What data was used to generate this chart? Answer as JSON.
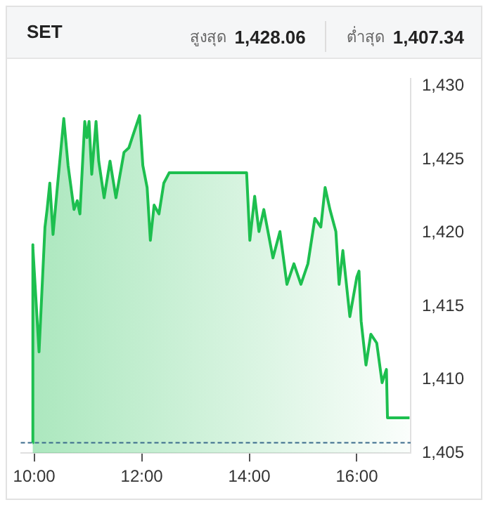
{
  "chart_data": {
    "type": "area",
    "title": "SET",
    "annotations": [
      "สูงสุด",
      "1,428.06",
      "ต่ำสุด",
      "1,407.34"
    ],
    "x": [
      9.97,
      9.97,
      9.98,
      10.09,
      10.2,
      10.24,
      10.29,
      10.35,
      10.43,
      10.55,
      10.63,
      10.74,
      10.8,
      10.85,
      10.94,
      10.98,
      11.02,
      11.07,
      11.15,
      11.2,
      11.3,
      11.41,
      11.52,
      11.67,
      11.76,
      11.84,
      11.96,
      12.02,
      12.1,
      12.16,
      12.23,
      12.32,
      12.41,
      12.51,
      13.95,
      14.01,
      14.1,
      14.18,
      14.27,
      14.44,
      14.57,
      14.7,
      14.83,
      14.96,
      15.09,
      15.22,
      15.33,
      15.41,
      15.5,
      15.61,
      15.67,
      15.74,
      15.87,
      16.0,
      16.04,
      16.08,
      16.17,
      16.26,
      16.37,
      16.47,
      16.55,
      16.57,
      16.98
    ],
    "series": [
      {
        "color": "#1dbf4f",
        "values": [
          1405.7,
          1419.2,
          1419.0,
          1411.9,
          1420.4,
          1421.6,
          1423.4,
          1419.9,
          1423.1,
          1427.8,
          1424.6,
          1421.6,
          1422.2,
          1421.3,
          1427.6,
          1426.5,
          1427.6,
          1424.0,
          1427.6,
          1424.9,
          1422.4,
          1424.9,
          1422.4,
          1425.5,
          1425.8,
          1426.7,
          1428.0,
          1424.6,
          1423.1,
          1419.5,
          1421.9,
          1421.3,
          1423.4,
          1424.1,
          1424.1,
          1419.5,
          1422.5,
          1420.1,
          1421.6,
          1418.3,
          1420.1,
          1416.5,
          1417.9,
          1416.5,
          1417.9,
          1421.0,
          1420.4,
          1423.1,
          1421.6,
          1420.1,
          1416.5,
          1418.8,
          1414.3,
          1417.0,
          1417.4,
          1414.0,
          1411.0,
          1413.1,
          1412.5,
          1409.8,
          1410.7,
          1407.4,
          1407.4
        ]
      }
    ],
    "xlim": [
      9.75,
      17
    ],
    "xticks": [
      {
        "value": 10,
        "label": "10:00"
      },
      {
        "value": 12,
        "label": "12:00"
      },
      {
        "value": 14,
        "label": "14:00"
      },
      {
        "value": 16,
        "label": "16:00"
      }
    ],
    "ylim": [
      1405,
      1430.5
    ],
    "yticks": [
      {
        "value": 1405,
        "label": "1,405"
      },
      {
        "value": 1410,
        "label": "1,410"
      },
      {
        "value": 1415,
        "label": "1,415"
      },
      {
        "value": 1420,
        "label": "1,420"
      },
      {
        "value": 1425,
        "label": "1,425"
      },
      {
        "value": 1430,
        "label": "1,430"
      }
    ],
    "ref_lines": [
      {
        "axis": "y",
        "value": 1405.7,
        "color": "#3a6b8c",
        "line_style": "dashed"
      }
    ],
    "grid": false,
    "legend": false,
    "marker": "none",
    "line_style": "solid"
  }
}
